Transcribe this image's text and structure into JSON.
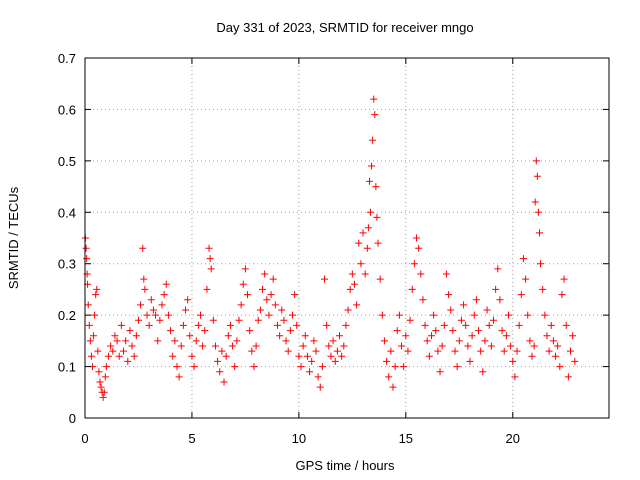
{
  "chart_data": {
    "type": "scatter",
    "title": "Day 331 of 2023, SRMTID for receiver mngo",
    "xlabel": "GPS time / hours",
    "ylabel": "SRMTID / TECUs",
    "xlim": [
      0,
      24.5
    ],
    "ylim": [
      0,
      0.7
    ],
    "xticks": [
      0,
      5,
      10,
      15,
      20
    ],
    "yticks": [
      0,
      0.1,
      0.2,
      0.3,
      0.4,
      0.5,
      0.6,
      0.7
    ],
    "xtick_labels": [
      "0",
      "5",
      "10",
      "15",
      "20"
    ],
    "ytick_labels": [
      "0",
      "0.1",
      "0.2",
      "0.3",
      "0.4",
      "0.5",
      "0.6",
      "0.7"
    ],
    "grid": true,
    "marker": "+",
    "color": "#ff0000",
    "series": [
      {
        "name": "SRMTID",
        "points": [
          [
            0.02,
            0.35
          ],
          [
            0.05,
            0.33
          ],
          [
            0.08,
            0.31
          ],
          [
            0.1,
            0.28
          ],
          [
            0.12,
            0.26
          ],
          [
            0.15,
            0.22
          ],
          [
            0.2,
            0.18
          ],
          [
            0.25,
            0.15
          ],
          [
            0.3,
            0.12
          ],
          [
            0.35,
            0.1
          ],
          [
            0.4,
            0.16
          ],
          [
            0.45,
            0.2
          ],
          [
            0.5,
            0.24
          ],
          [
            0.55,
            0.25
          ],
          [
            0.6,
            0.13
          ],
          [
            0.65,
            0.09
          ],
          [
            0.7,
            0.07
          ],
          [
            0.75,
            0.06
          ],
          [
            0.8,
            0.05
          ],
          [
            0.85,
            0.04
          ],
          [
            0.9,
            0.05
          ],
          [
            0.95,
            0.08
          ],
          [
            1.0,
            0.1
          ],
          [
            1.1,
            0.12
          ],
          [
            1.2,
            0.14
          ],
          [
            1.3,
            0.13
          ],
          [
            1.4,
            0.16
          ],
          [
            1.5,
            0.15
          ],
          [
            1.6,
            0.12
          ],
          [
            1.7,
            0.18
          ],
          [
            1.8,
            0.13
          ],
          [
            1.9,
            0.15
          ],
          [
            2.0,
            0.11
          ],
          [
            2.1,
            0.17
          ],
          [
            2.2,
            0.14
          ],
          [
            2.3,
            0.12
          ],
          [
            2.4,
            0.16
          ],
          [
            2.5,
            0.19
          ],
          [
            2.6,
            0.22
          ],
          [
            2.7,
            0.33
          ],
          [
            2.75,
            0.27
          ],
          [
            2.8,
            0.25
          ],
          [
            2.9,
            0.2
          ],
          [
            3.0,
            0.18
          ],
          [
            3.1,
            0.23
          ],
          [
            3.2,
            0.21
          ],
          [
            3.3,
            0.2
          ],
          [
            3.4,
            0.15
          ],
          [
            3.5,
            0.19
          ],
          [
            3.6,
            0.22
          ],
          [
            3.7,
            0.24
          ],
          [
            3.8,
            0.26
          ],
          [
            3.9,
            0.2
          ],
          [
            4.0,
            0.17
          ],
          [
            4.1,
            0.12
          ],
          [
            4.2,
            0.15
          ],
          [
            4.3,
            0.1
          ],
          [
            4.4,
            0.08
          ],
          [
            4.5,
            0.14
          ],
          [
            4.6,
            0.18
          ],
          [
            4.7,
            0.21
          ],
          [
            4.8,
            0.23
          ],
          [
            4.9,
            0.16
          ],
          [
            5.0,
            0.12
          ],
          [
            5.1,
            0.1
          ],
          [
            5.2,
            0.15
          ],
          [
            5.3,
            0.18
          ],
          [
            5.4,
            0.2
          ],
          [
            5.5,
            0.14
          ],
          [
            5.6,
            0.17
          ],
          [
            5.7,
            0.25
          ],
          [
            5.8,
            0.33
          ],
          [
            5.85,
            0.31
          ],
          [
            5.9,
            0.29
          ],
          [
            6.0,
            0.19
          ],
          [
            6.1,
            0.14
          ],
          [
            6.2,
            0.11
          ],
          [
            6.3,
            0.09
          ],
          [
            6.4,
            0.13
          ],
          [
            6.5,
            0.07
          ],
          [
            6.6,
            0.12
          ],
          [
            6.7,
            0.16
          ],
          [
            6.8,
            0.18
          ],
          [
            6.9,
            0.14
          ],
          [
            7.0,
            0.1
          ],
          [
            7.1,
            0.15
          ],
          [
            7.2,
            0.19
          ],
          [
            7.3,
            0.22
          ],
          [
            7.4,
            0.26
          ],
          [
            7.5,
            0.29
          ],
          [
            7.6,
            0.24
          ],
          [
            7.7,
            0.17
          ],
          [
            7.8,
            0.13
          ],
          [
            7.9,
            0.1
          ],
          [
            8.0,
            0.14
          ],
          [
            8.1,
            0.19
          ],
          [
            8.2,
            0.21
          ],
          [
            8.3,
            0.25
          ],
          [
            8.4,
            0.28
          ],
          [
            8.5,
            0.23
          ],
          [
            8.6,
            0.2
          ],
          [
            8.7,
            0.24
          ],
          [
            8.8,
            0.27
          ],
          [
            8.9,
            0.22
          ],
          [
            9.0,
            0.18
          ],
          [
            9.1,
            0.16
          ],
          [
            9.2,
            0.21
          ],
          [
            9.3,
            0.19
          ],
          [
            9.4,
            0.15
          ],
          [
            9.5,
            0.13
          ],
          [
            9.6,
            0.17
          ],
          [
            9.7,
            0.2
          ],
          [
            9.8,
            0.24
          ],
          [
            9.9,
            0.18
          ],
          [
            10.0,
            0.12
          ],
          [
            10.1,
            0.1
          ],
          [
            10.2,
            0.14
          ],
          [
            10.3,
            0.16
          ],
          [
            10.4,
            0.12
          ],
          [
            10.5,
            0.09
          ],
          [
            10.6,
            0.11
          ],
          [
            10.7,
            0.15
          ],
          [
            10.8,
            0.13
          ],
          [
            10.9,
            0.08
          ],
          [
            11.0,
            0.06
          ],
          [
            11.1,
            0.1
          ],
          [
            11.2,
            0.27
          ],
          [
            11.3,
            0.18
          ],
          [
            11.4,
            0.14
          ],
          [
            11.5,
            0.12
          ],
          [
            11.6,
            0.15
          ],
          [
            11.7,
            0.11
          ],
          [
            11.8,
            0.13
          ],
          [
            11.9,
            0.16
          ],
          [
            12.0,
            0.12
          ],
          [
            12.1,
            0.14
          ],
          [
            12.2,
            0.18
          ],
          [
            12.3,
            0.21
          ],
          [
            12.4,
            0.25
          ],
          [
            12.5,
            0.28
          ],
          [
            12.6,
            0.26
          ],
          [
            12.7,
            0.22
          ],
          [
            12.8,
            0.34
          ],
          [
            12.9,
            0.3
          ],
          [
            13.0,
            0.36
          ],
          [
            13.1,
            0.28
          ],
          [
            13.2,
            0.33
          ],
          [
            13.25,
            0.37
          ],
          [
            13.3,
            0.46
          ],
          [
            13.35,
            0.4
          ],
          [
            13.4,
            0.49
          ],
          [
            13.45,
            0.54
          ],
          [
            13.5,
            0.62
          ],
          [
            13.55,
            0.59
          ],
          [
            13.6,
            0.45
          ],
          [
            13.65,
            0.39
          ],
          [
            13.7,
            0.34
          ],
          [
            13.8,
            0.27
          ],
          [
            13.9,
            0.2
          ],
          [
            14.0,
            0.15
          ],
          [
            14.1,
            0.11
          ],
          [
            14.2,
            0.08
          ],
          [
            14.3,
            0.13
          ],
          [
            14.4,
            0.06
          ],
          [
            14.5,
            0.1
          ],
          [
            14.6,
            0.17
          ],
          [
            14.7,
            0.2
          ],
          [
            14.8,
            0.14
          ],
          [
            14.9,
            0.1
          ],
          [
            15.0,
            0.16
          ],
          [
            15.1,
            0.13
          ],
          [
            15.2,
            0.19
          ],
          [
            15.3,
            0.25
          ],
          [
            15.4,
            0.3
          ],
          [
            15.5,
            0.35
          ],
          [
            15.6,
            0.33
          ],
          [
            15.7,
            0.28
          ],
          [
            15.8,
            0.23
          ],
          [
            15.9,
            0.18
          ],
          [
            16.0,
            0.15
          ],
          [
            16.1,
            0.12
          ],
          [
            16.2,
            0.16
          ],
          [
            16.3,
            0.2
          ],
          [
            16.4,
            0.17
          ],
          [
            16.5,
            0.13
          ],
          [
            16.6,
            0.09
          ],
          [
            16.7,
            0.14
          ],
          [
            16.8,
            0.18
          ],
          [
            16.9,
            0.28
          ],
          [
            17.0,
            0.24
          ],
          [
            17.1,
            0.21
          ],
          [
            17.2,
            0.17
          ],
          [
            17.3,
            0.13
          ],
          [
            17.4,
            0.1
          ],
          [
            17.5,
            0.15
          ],
          [
            17.6,
            0.19
          ],
          [
            17.7,
            0.22
          ],
          [
            17.8,
            0.18
          ],
          [
            17.9,
            0.14
          ],
          [
            18.0,
            0.11
          ],
          [
            18.1,
            0.16
          ],
          [
            18.2,
            0.2
          ],
          [
            18.3,
            0.23
          ],
          [
            18.4,
            0.17
          ],
          [
            18.5,
            0.13
          ],
          [
            18.6,
            0.09
          ],
          [
            18.7,
            0.15
          ],
          [
            18.8,
            0.21
          ],
          [
            18.9,
            0.18
          ],
          [
            19.0,
            0.14
          ],
          [
            19.1,
            0.19
          ],
          [
            19.2,
            0.25
          ],
          [
            19.3,
            0.29
          ],
          [
            19.4,
            0.23
          ],
          [
            19.5,
            0.17
          ],
          [
            19.6,
            0.13
          ],
          [
            19.7,
            0.16
          ],
          [
            19.8,
            0.2
          ],
          [
            19.9,
            0.14
          ],
          [
            20.0,
            0.11
          ],
          [
            20.1,
            0.08
          ],
          [
            20.2,
            0.13
          ],
          [
            20.3,
            0.18
          ],
          [
            20.4,
            0.24
          ],
          [
            20.5,
            0.31
          ],
          [
            20.6,
            0.27
          ],
          [
            20.7,
            0.2
          ],
          [
            20.8,
            0.15
          ],
          [
            20.9,
            0.12
          ],
          [
            21.0,
            0.14
          ],
          [
            21.05,
            0.42
          ],
          [
            21.1,
            0.5
          ],
          [
            21.15,
            0.47
          ],
          [
            21.2,
            0.4
          ],
          [
            21.25,
            0.36
          ],
          [
            21.3,
            0.3
          ],
          [
            21.4,
            0.25
          ],
          [
            21.5,
            0.2
          ],
          [
            21.6,
            0.16
          ],
          [
            21.7,
            0.13
          ],
          [
            21.8,
            0.18
          ],
          [
            21.9,
            0.15
          ],
          [
            22.0,
            0.12
          ],
          [
            22.1,
            0.14
          ],
          [
            22.2,
            0.1
          ],
          [
            22.3,
            0.24
          ],
          [
            22.4,
            0.27
          ],
          [
            22.5,
            0.18
          ],
          [
            22.6,
            0.08
          ],
          [
            22.7,
            0.13
          ],
          [
            22.8,
            0.16
          ],
          [
            22.9,
            0.11
          ]
        ]
      }
    ]
  }
}
